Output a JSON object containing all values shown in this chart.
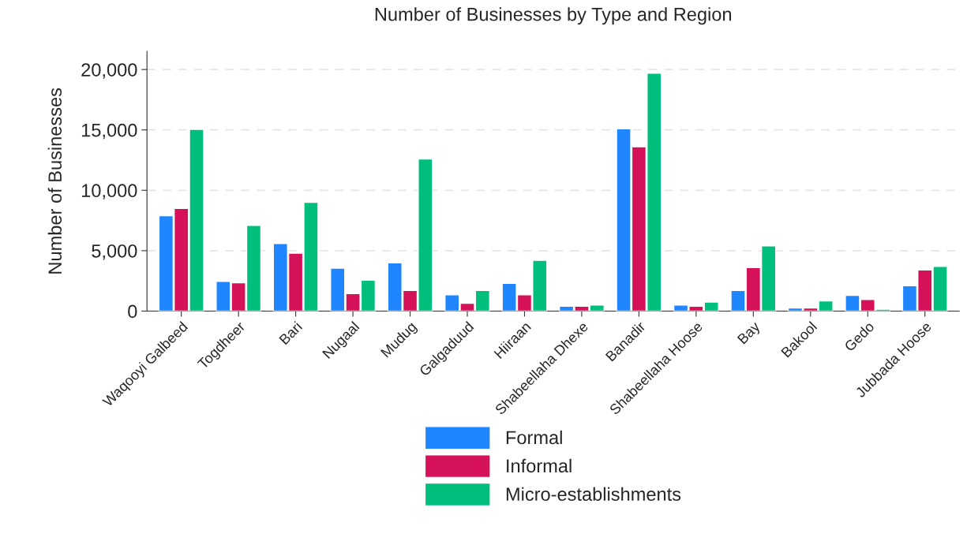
{
  "chart_data": {
    "type": "bar",
    "title": "Number of Businesses by Type and Region",
    "ylabel": "Number of Businesses",
    "categories": [
      "Waqooyi Galbeed",
      "Togdheer",
      "Bari",
      "Nugaal",
      "Mudug",
      "Galgaduud",
      "Hiiraan",
      "Shabeellaha Dhexe",
      "Banadir",
      "Shabeellaha Hoose",
      "Bay",
      "Bakool",
      "Gedo",
      "Jubbada Hoose"
    ],
    "series": [
      {
        "name": "Formal",
        "color": "#1f86ff",
        "values": [
          7900,
          2450,
          5600,
          3550,
          4000,
          1350,
          2300,
          400,
          15100,
          500,
          1700,
          250,
          1300,
          2100
        ]
      },
      {
        "name": "Informal",
        "color": "#d41159",
        "values": [
          8500,
          2350,
          4800,
          1450,
          1700,
          650,
          1350,
          400,
          13600,
          400,
          3600,
          250,
          950,
          3400
        ]
      },
      {
        "name": "Micro-establishments",
        "color": "#00bf7d",
        "values": [
          15050,
          7100,
          9000,
          2550,
          12600,
          1700,
          4200,
          500,
          19700,
          750,
          5400,
          850,
          150,
          3700
        ]
      }
    ],
    "ylim": [
      0,
      21500
    ],
    "yticks": [
      0,
      {
        "value": 5000,
        "label": "5,000"
      },
      {
        "value": 10000,
        "label": "10,000"
      },
      {
        "value": 15000,
        "label": "15,000"
      },
      {
        "value": 20000,
        "label": "20,000"
      }
    ],
    "grid": "y",
    "legend": "bottom"
  }
}
